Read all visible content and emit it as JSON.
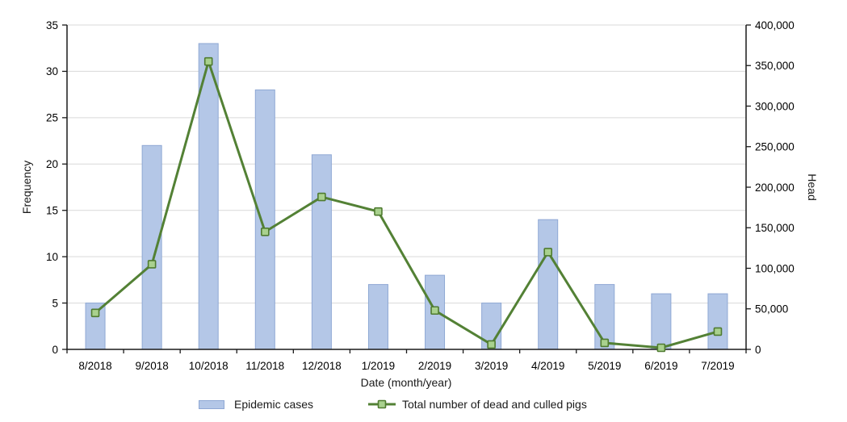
{
  "chart_data": {
    "type": "combo",
    "categories": [
      "8/2018",
      "9/2018",
      "10/2018",
      "11/2018",
      "12/2018",
      "1/2019",
      "2/2019",
      "3/2019",
      "4/2019",
      "5/2019",
      "6/2019",
      "7/2019"
    ],
    "series": [
      {
        "name": "Epidemic cases",
        "type": "bar",
        "axis": "left",
        "values": [
          5,
          22,
          33,
          28,
          21,
          7,
          8,
          5,
          14,
          7,
          6,
          6
        ]
      },
      {
        "name": "Total number of dead and culled pigs",
        "type": "line",
        "axis": "right",
        "values": [
          45000,
          105000,
          355000,
          145000,
          188000,
          170000,
          48000,
          6000,
          120000,
          8000,
          2000,
          22000
        ]
      }
    ],
    "xlabel": "Date (month/year)",
    "ylabel_left": "Frequency",
    "ylabel_right": "Head",
    "ylim_left": [
      0,
      35
    ],
    "ytick_step_left": 5,
    "ylim_right": [
      0,
      400000
    ],
    "ytick_step_right": 50000,
    "left_ticks": [
      "0",
      "5",
      "10",
      "15",
      "20",
      "25",
      "30",
      "35"
    ],
    "right_ticks": [
      "0",
      "50,000",
      "100,000",
      "150,000",
      "200,000",
      "250,000",
      "300,000",
      "350,000",
      "400,000"
    ],
    "grid": "horizontal",
    "legend_position": "bottom",
    "colors": {
      "bar_fill": "#b4c7e7",
      "bar_stroke": "#8fa8d4",
      "line": "#538135",
      "marker_fill": "#a9d18e",
      "marker_stroke": "#4f7b30",
      "grid": "#d9d9d9",
      "axis": "#1a1a1a",
      "text": "#000000"
    }
  }
}
